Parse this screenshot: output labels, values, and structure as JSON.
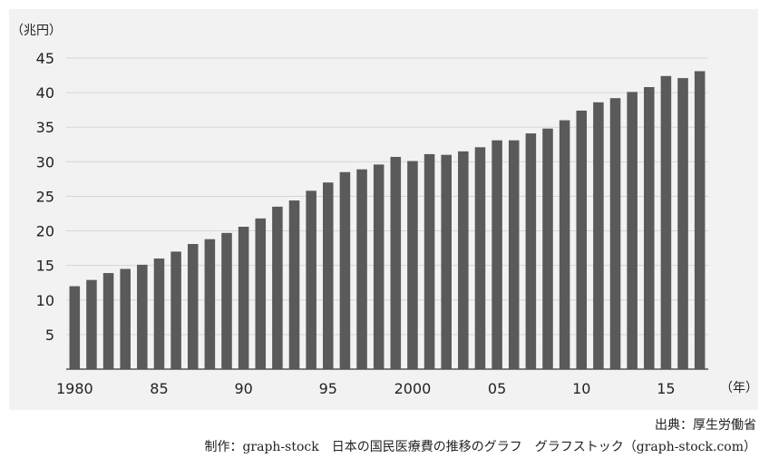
{
  "footer": {
    "source": "出典：厚生労働省",
    "credit": "制作：graph-stock　日本の国民医療費の推移のグラフ　グラフストック（graph-stock.com）"
  },
  "colors": {
    "bar": "#5a5a5a",
    "grid": "#d6d6d6",
    "axis": "#555555",
    "panel": "#f2f2f2"
  },
  "chart_data": {
    "type": "bar",
    "title": "",
    "ylabel": "（兆円）",
    "xlabel": "（年）",
    "ylim": [
      0,
      45
    ],
    "yticks": [
      5,
      10,
      15,
      20,
      25,
      30,
      35,
      40,
      45
    ],
    "grid": true,
    "legend": "none",
    "categories": [
      "1980",
      "1981",
      "1982",
      "1983",
      "1984",
      "1985",
      "1986",
      "1987",
      "1988",
      "1989",
      "1990",
      "1991",
      "1992",
      "1993",
      "1994",
      "1995",
      "1996",
      "1997",
      "1998",
      "1999",
      "2000",
      "2001",
      "2002",
      "2003",
      "2004",
      "2005",
      "2006",
      "2007",
      "2008",
      "2009",
      "2010",
      "2011",
      "2012",
      "2013",
      "2014",
      "2015",
      "2016",
      "2017"
    ],
    "xtick_labels": [
      "1980",
      "",
      "",
      "",
      "",
      "85",
      "",
      "",
      "",
      "",
      "90",
      "",
      "",
      "",
      "",
      "95",
      "",
      "",
      "",
      "",
      "2000",
      "",
      "",
      "",
      "",
      "05",
      "",
      "",
      "",
      "",
      "10",
      "",
      "",
      "",
      "",
      "15",
      "",
      ""
    ],
    "values": [
      12.0,
      12.9,
      13.9,
      14.5,
      15.1,
      16.0,
      17.0,
      18.1,
      18.8,
      19.7,
      20.6,
      21.8,
      23.5,
      24.4,
      25.8,
      27.0,
      28.5,
      28.9,
      29.6,
      30.7,
      30.1,
      31.1,
      31.0,
      31.5,
      32.1,
      33.1,
      33.1,
      34.1,
      34.8,
      36.0,
      37.4,
      38.6,
      39.2,
      40.1,
      40.8,
      42.4,
      42.1,
      43.1
    ]
  }
}
